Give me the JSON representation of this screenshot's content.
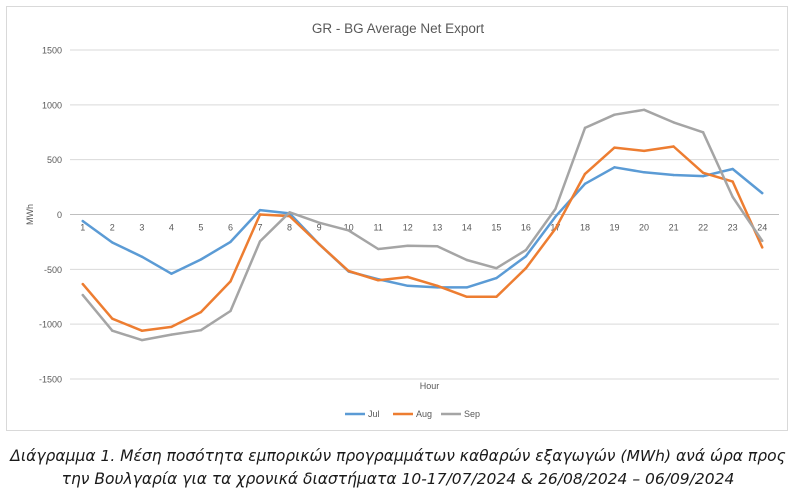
{
  "chart_data": {
    "type": "line",
    "title": "GR - BG Average Net Export",
    "xlabel": "Hour",
    "ylabel": "MWh",
    "categories": [
      "1",
      "2",
      "3",
      "4",
      "5",
      "6",
      "7",
      "8",
      "9",
      "10",
      "11",
      "12",
      "13",
      "14",
      "15",
      "16",
      "17",
      "18",
      "19",
      "20",
      "21",
      "22",
      "23",
      "24"
    ],
    "ylim": [
      -1500,
      1500
    ],
    "yticks": [
      1500,
      1000,
      500,
      0,
      -500,
      -1000,
      -1500
    ],
    "grid": true,
    "legend_position": "bottom",
    "series": [
      {
        "name": "Jul",
        "color": "#5b9bd5",
        "values": [
          -60,
          -255,
          -385,
          -540,
          -410,
          -250,
          40,
          10,
          -270,
          -520,
          -590,
          -650,
          -665,
          -665,
          -580,
          -380,
          -20,
          280,
          430,
          385,
          360,
          350,
          415,
          195
        ]
      },
      {
        "name": "Aug",
        "color": "#ed7d31",
        "values": [
          -635,
          -950,
          -1060,
          -1025,
          -890,
          -610,
          0,
          -15,
          -270,
          -515,
          -600,
          -570,
          -650,
          -750,
          -750,
          -490,
          -130,
          370,
          610,
          580,
          620,
          380,
          300,
          -300
        ]
      },
      {
        "name": "Sep",
        "color": "#a5a5a5",
        "values": [
          -735,
          -1060,
          -1145,
          -1095,
          -1055,
          -880,
          -245,
          20,
          -75,
          -145,
          -315,
          -285,
          -290,
          -415,
          -490,
          -325,
          50,
          790,
          910,
          955,
          840,
          750,
          160,
          -240
        ]
      }
    ]
  },
  "caption": {
    "line1": "Διάγραμμα 1. Μέση ποσότητα εμπορικών προγραμμάτων καθαρών εξαγωγών (MWh) ανά ώρα προς",
    "line2": "την Βουλγαρία για τα χρονικά διαστήματα 10-17/07/2024 & 26/08/2024 – 06/09/2024"
  }
}
